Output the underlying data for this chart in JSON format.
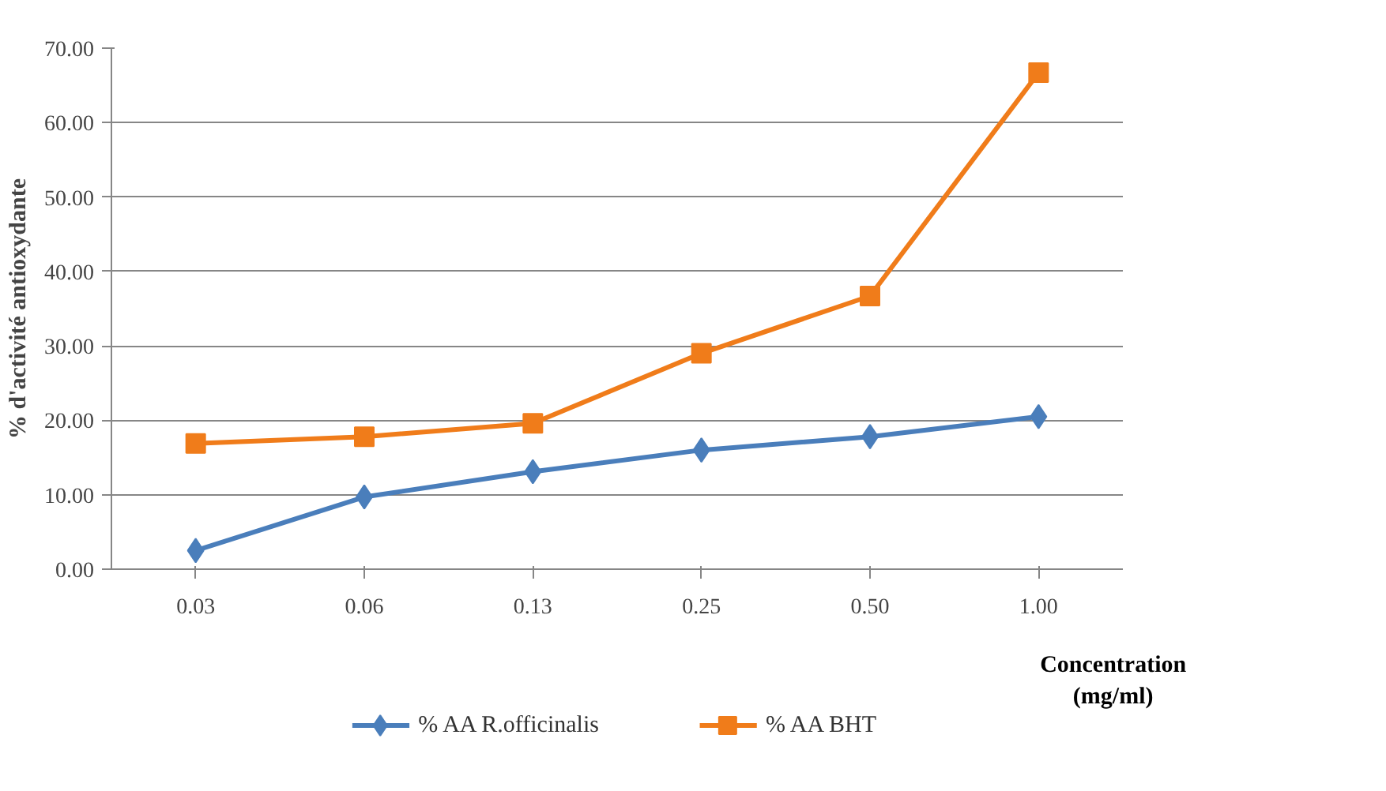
{
  "chart_data": {
    "type": "line",
    "ylabel": "% d'activité antioxydante",
    "xlabel": "Concentration (mg/ml)",
    "categories": [
      "0.03",
      "0.06",
      "0.13",
      "0.25",
      "0.50",
      "1.00"
    ],
    "series": [
      {
        "name": "% AA R.officinalis",
        "color": "#4a7ebb",
        "marker": "diamond",
        "values": [
          2.5,
          9.7,
          13.1,
          16.0,
          17.8,
          20.5
        ]
      },
      {
        "name": "% AA BHT",
        "color": "#f07c1a",
        "marker": "square",
        "values": [
          16.9,
          17.8,
          19.6,
          29.0,
          36.7,
          66.7
        ]
      }
    ],
    "ylim": [
      0,
      70
    ],
    "yticks": [
      {
        "value": 0,
        "label": "0.00"
      },
      {
        "value": 10,
        "label": "10.00"
      },
      {
        "value": 20,
        "label": "20.00"
      },
      {
        "value": 30,
        "label": "30.00"
      },
      {
        "value": 40,
        "label": "40.00"
      },
      {
        "value": 50,
        "label": "50.00"
      },
      {
        "value": 60,
        "label": "60.00"
      },
      {
        "value": 70,
        "label": "70.00"
      }
    ],
    "grid": "y",
    "legend": "bottom",
    "line_style": "solid"
  }
}
